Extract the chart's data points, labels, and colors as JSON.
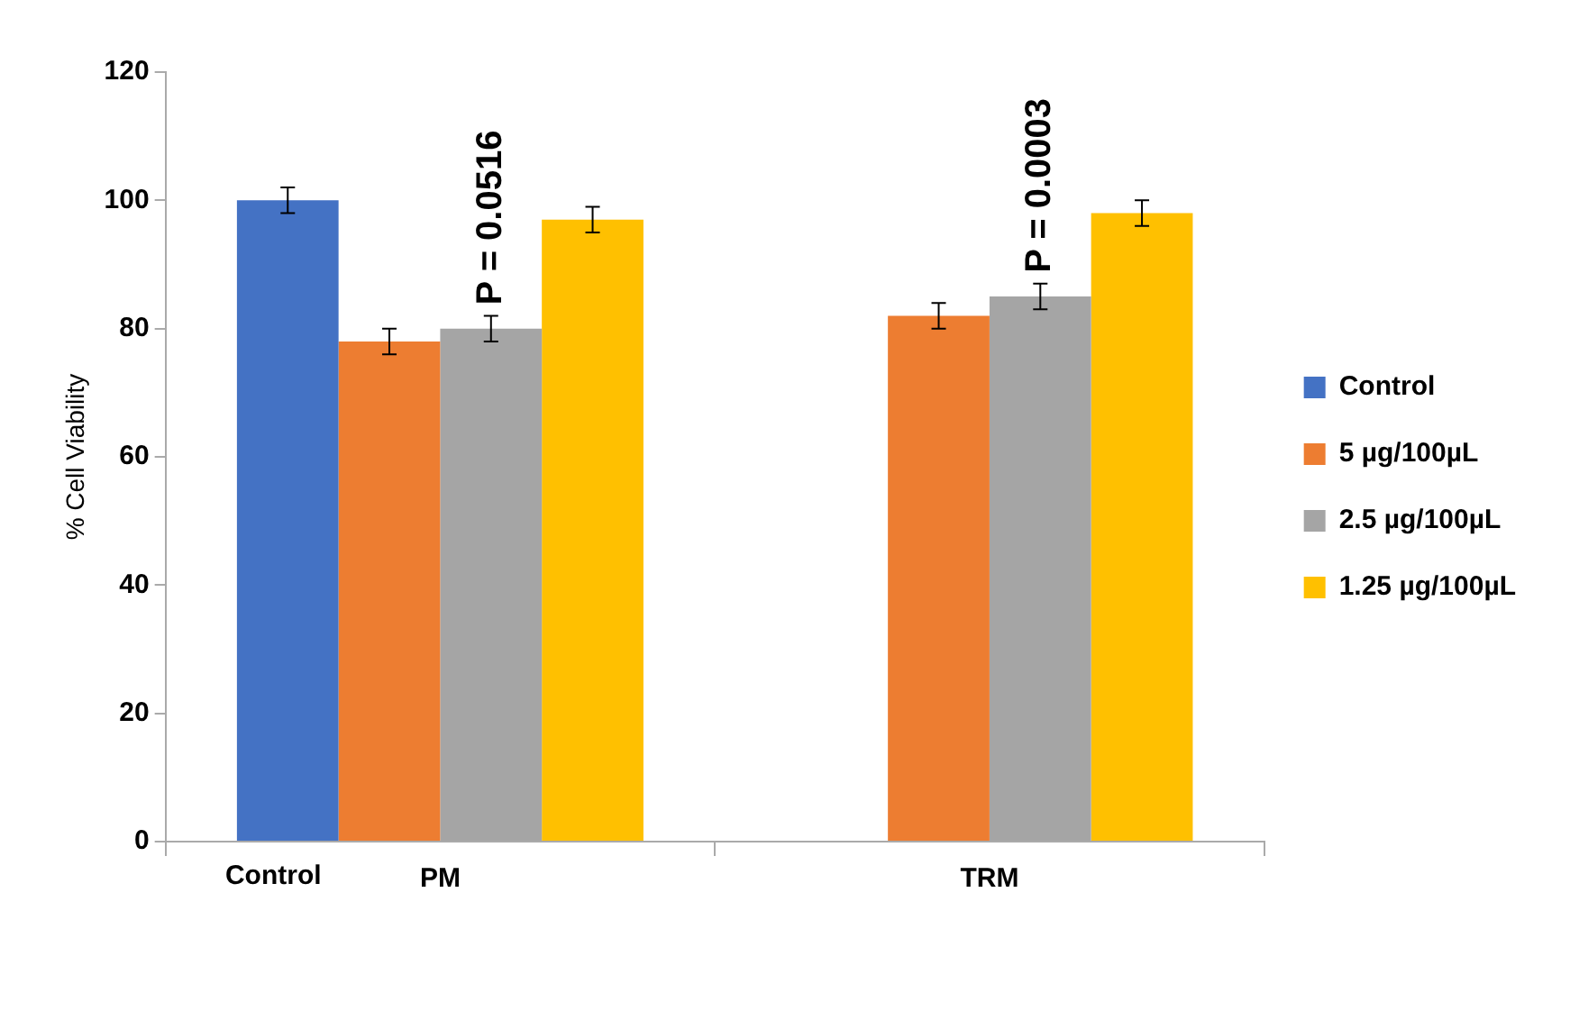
{
  "chart_data": {
    "type": "bar",
    "ylabel": "% Cell Viability",
    "categories": [
      "PM",
      "TRM"
    ],
    "series": [
      {
        "name": "Control",
        "color": "#4472c4",
        "values": [
          100,
          null
        ],
        "errors": [
          2,
          null
        ]
      },
      {
        "name": "5 µg/100µL",
        "color": "#ed7d31",
        "values": [
          78,
          82
        ],
        "errors": [
          2,
          2
        ]
      },
      {
        "name": "2.5 µg/100µL",
        "color": "#a5a5a5",
        "values": [
          80,
          85
        ],
        "errors": [
          2,
          2
        ]
      },
      {
        "name": "1.25 µg/100µL",
        "color": "#ffc000",
        "values": [
          97,
          98
        ],
        "errors": [
          2,
          2
        ]
      }
    ],
    "ylim": [
      0,
      120
    ],
    "yticks": [
      0,
      20,
      40,
      60,
      80,
      100,
      120
    ],
    "grid": false,
    "legend": "right",
    "annotations": [
      "Control",
      {
        "text": "P = 0.0516",
        "x": "PM",
        "y": 80
      },
      {
        "text": "P = 0.0003",
        "x": "TRM",
        "y": 85
      }
    ]
  }
}
